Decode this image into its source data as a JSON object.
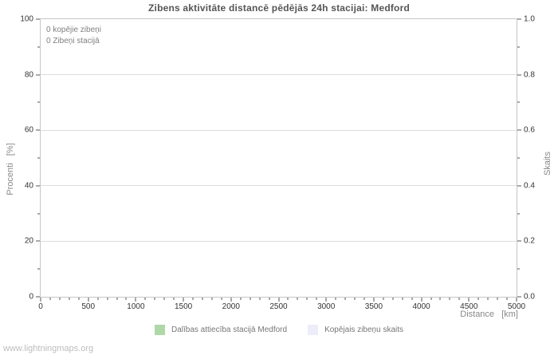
{
  "title": "Zibens aktivitāte distancē pēdējās 24h stacijai: Medford",
  "annotations": {
    "line1": "0 kopējie zibeņi",
    "line2": "0 Zibeņi stacijā"
  },
  "axes": {
    "left_label": "Procenti   [%]",
    "right_label": "Skaits",
    "bottom_label": "Distance   [km]"
  },
  "legend": {
    "items": [
      {
        "label": "Dalības attiecība stacijā Medford",
        "color": "#aed8a6"
      },
      {
        "label": "Kopējais zibeņu skaits",
        "color": "#ecedf9"
      }
    ]
  },
  "footer": "www.lightningmaps.org",
  "colors": {
    "grid": "#dddddd",
    "plot_border": "#c6c6c6",
    "tick": "#555555",
    "tick_label": "#333333",
    "axis_title": "#888888",
    "title": "#555555",
    "annotation": "#808080",
    "legend_text": "#777777",
    "footer": "#bdbdbd"
  },
  "chart_data": {
    "type": "bar",
    "title": "Zibens aktivitāte distancē pēdējās 24h stacijai: Medford",
    "xlabel": "Distance [km]",
    "ylabel_left": "Procenti [%]",
    "ylabel_right": "Skaits",
    "xlim": [
      0,
      5000
    ],
    "ylim_left": [
      0,
      100
    ],
    "ylim_right": [
      0,
      1
    ],
    "x_major_ticks": [
      0,
      500,
      1000,
      1500,
      2000,
      2500,
      3000,
      3500,
      4000,
      4500,
      5000
    ],
    "x_minor_step": 100,
    "y_major_left": [
      0,
      20,
      40,
      60,
      80,
      100
    ],
    "y_minor_step_left": 10,
    "y_major_right_labels": [
      "0.0",
      "0.2",
      "0.4",
      "0.6",
      "0.8",
      "1.0"
    ],
    "y_minor_step_right": 0.1,
    "grid": "horizontal-major-only",
    "legend_position": "bottom-center",
    "series": [
      {
        "name": "Dalības attiecība stacijā Medford",
        "color": "#aed8a6",
        "values": []
      },
      {
        "name": "Kopējais zibeņu skaits",
        "color": "#ecedf9",
        "values": []
      }
    ],
    "annotations": [
      "0 kopējie zibeņi",
      "0 Zibeņi stacijā"
    ],
    "total_lightning_count": 0,
    "station_lightning_count": 0
  }
}
